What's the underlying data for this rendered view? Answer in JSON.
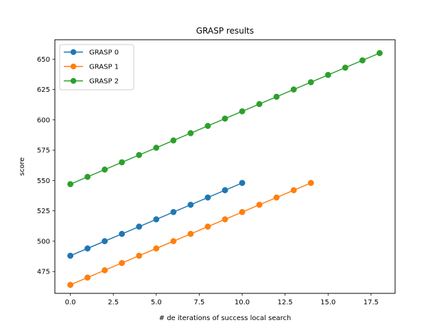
{
  "chart_data": {
    "type": "line",
    "title": "GRASP results",
    "xlabel": "# de iterations of success local search",
    "ylabel": "score",
    "xlim": [
      -0.9,
      18.9
    ],
    "ylim": [
      457,
      666
    ],
    "xticks": [
      0.0,
      2.5,
      5.0,
      7.5,
      10.0,
      12.5,
      15.0,
      17.5
    ],
    "xtick_labels": [
      "0.0",
      "2.5",
      "5.0",
      "7.5",
      "10.0",
      "12.5",
      "15.0",
      "17.5"
    ],
    "yticks": [
      475,
      500,
      525,
      550,
      575,
      600,
      625,
      650
    ],
    "ytick_labels": [
      "475",
      "500",
      "525",
      "550",
      "575",
      "600",
      "625",
      "650"
    ],
    "grid": false,
    "legend_position": "top-left",
    "series": [
      {
        "name": "GRASP 0",
        "color": "#1f77b4",
        "marker": "circle",
        "x": [
          0,
          1,
          2,
          3,
          4,
          5,
          6,
          7,
          8,
          9,
          10
        ],
        "y": [
          488,
          494,
          500,
          506,
          512,
          518,
          524,
          530,
          536,
          542,
          548
        ]
      },
      {
        "name": "GRASP 1",
        "color": "#ff7f0e",
        "marker": "circle",
        "x": [
          0,
          1,
          2,
          3,
          4,
          5,
          6,
          7,
          8,
          9,
          10,
          11,
          12,
          13,
          14
        ],
        "y": [
          464,
          470,
          476,
          482,
          488,
          494,
          500,
          506,
          512,
          518,
          524,
          530,
          536,
          542,
          548
        ]
      },
      {
        "name": "GRASP 2",
        "color": "#2ca02c",
        "marker": "circle",
        "x": [
          0,
          1,
          2,
          3,
          4,
          5,
          6,
          7,
          8,
          9,
          10,
          11,
          12,
          13,
          14,
          15,
          16,
          17,
          18
        ],
        "y": [
          547,
          553,
          559,
          565,
          571,
          577,
          583,
          589,
          595,
          601,
          607,
          613,
          619,
          625,
          631,
          637,
          643,
          649,
          655
        ]
      }
    ]
  }
}
